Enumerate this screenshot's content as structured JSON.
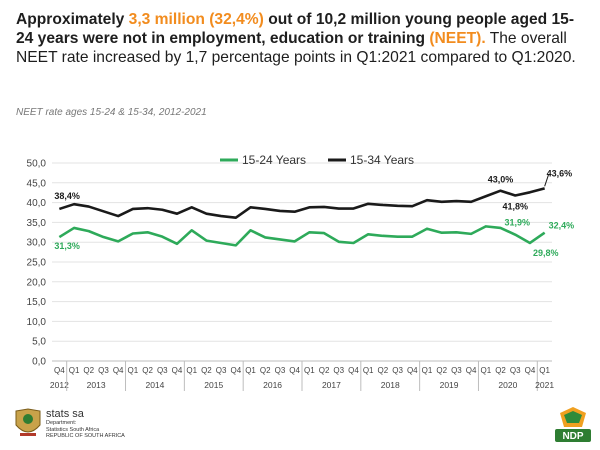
{
  "headline": {
    "p1": "Approximately ",
    "h1": "3,3 million (32,4%)",
    "p2": " out of 10,2 million young people aged 15-24 years were not in employment, education or training ",
    "h2": "(NEET).",
    "p3": " The overall NEET rate increased by 1,7 percentage points in Q1:2021 compared to Q1:2020."
  },
  "subtitle": "NEET rate ages 15-24 & 15-34, 2012-2021",
  "footer": {
    "org_name": "stats sa",
    "org_dept_line1": "Department:",
    "org_dept_line2": "Statistics South Africa",
    "org_dept_line3": "REPUBLIC OF SOUTH AFRICA",
    "right_logo_text": "NDP"
  },
  "chart_data": {
    "type": "line",
    "ylim": [
      0,
      50
    ],
    "yticks": [
      "0,0",
      "5,0",
      "10,0",
      "15,0",
      "20,0",
      "25,0",
      "30,0",
      "35,0",
      "40,0",
      "45,0",
      "50,0"
    ],
    "quarters": [
      "Q4",
      "Q1",
      "Q2",
      "Q3",
      "Q4",
      "Q1",
      "Q2",
      "Q3",
      "Q4",
      "Q1",
      "Q2",
      "Q3",
      "Q4",
      "Q1",
      "Q2",
      "Q3",
      "Q4",
      "Q1",
      "Q2",
      "Q3",
      "Q4",
      "Q1",
      "Q2",
      "Q3",
      "Q4",
      "Q1",
      "Q2",
      "Q3",
      "Q4",
      "Q1",
      "Q2",
      "Q3",
      "Q4",
      "Q1"
    ],
    "years": [
      {
        "label": "2012",
        "start": 0,
        "end": 0
      },
      {
        "label": "2013",
        "start": 1,
        "end": 4
      },
      {
        "label": "2014",
        "start": 5,
        "end": 8
      },
      {
        "label": "2015",
        "start": 9,
        "end": 12
      },
      {
        "label": "2016",
        "start": 13,
        "end": 16
      },
      {
        "label": "2017",
        "start": 17,
        "end": 20
      },
      {
        "label": "2018",
        "start": 21,
        "end": 24
      },
      {
        "label": "2019",
        "start": 25,
        "end": 28
      },
      {
        "label": "2020",
        "start": 29,
        "end": 32
      },
      {
        "label": "2021",
        "start": 33,
        "end": 33
      }
    ],
    "grid": true,
    "legend_position": "top-center",
    "series": [
      {
        "name": "15-24 Years",
        "color": "#2eaa5a",
        "values": [
          31.3,
          33.6,
          32.8,
          31.3,
          30.2,
          32.2,
          32.5,
          31.4,
          29.6,
          33.0,
          30.4,
          29.8,
          29.2,
          33.0,
          31.2,
          30.7,
          30.2,
          32.5,
          32.3,
          30.1,
          29.8,
          32.0,
          31.6,
          31.4,
          31.4,
          33.4,
          32.4,
          32.5,
          32.1,
          34.0,
          33.6,
          31.9,
          29.8,
          32.4
        ],
        "labels": [
          {
            "index": 0,
            "text": "31,3%"
          },
          {
            "index": 31,
            "text": "31,9%"
          },
          {
            "index": 32,
            "text": "29,8%"
          },
          {
            "index": 33,
            "text": "32,4%"
          }
        ]
      },
      {
        "name": "15-34 Years",
        "color": "#1a1a1a",
        "values": [
          38.4,
          39.6,
          39.0,
          37.8,
          36.6,
          38.4,
          38.6,
          38.2,
          37.2,
          38.8,
          37.2,
          36.6,
          36.2,
          38.8,
          38.4,
          37.9,
          37.7,
          38.8,
          38.9,
          38.5,
          38.5,
          39.7,
          39.4,
          39.2,
          39.1,
          40.6,
          40.2,
          40.4,
          40.2,
          41.6,
          43.0,
          41.8,
          42.6,
          43.6
        ],
        "labels": [
          {
            "index": 0,
            "text": "38,4%"
          },
          {
            "index": 30,
            "text": "43,0%"
          },
          {
            "index": 31,
            "text": "41,8%"
          },
          {
            "index": 33,
            "text": "43,6%"
          }
        ]
      }
    ]
  }
}
